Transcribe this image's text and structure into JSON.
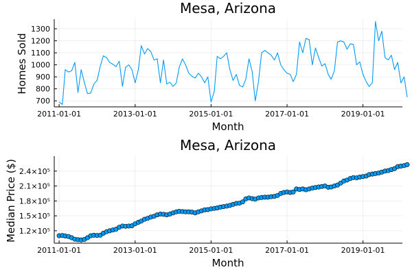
{
  "colors": {
    "series": "#009AF9",
    "marker_edge": "#000000"
  },
  "chart_data": [
    {
      "type": "line",
      "title": "Mesa, Arizona",
      "xlabel": "Month",
      "ylabel": "Homes Sold",
      "x_start": "2011-01-01",
      "x_frequency": "monthly",
      "xlim": [
        "2010-11-15",
        "2020-01-15"
      ],
      "ylim": [
        650,
        1380
      ],
      "grid": true,
      "legend": "none",
      "x_tick_labels": [
        "2011-01-01",
        "2013-01-01",
        "2015-01-01",
        "2017-01-01",
        "2019-01-01"
      ],
      "y_ticks": [
        700,
        800,
        900,
        1000,
        1100,
        1200,
        1300
      ],
      "y_tick_labels": [
        "700",
        "800",
        "900",
        "1000",
        "1100",
        "1200",
        "1300"
      ],
      "values": [
        690,
        670,
        960,
        940,
        950,
        1020,
        770,
        960,
        850,
        760,
        765,
        840,
        870,
        990,
        1075,
        1060,
        1020,
        1005,
        985,
        1030,
        820,
        980,
        1000,
        960,
        850,
        960,
        1160,
        1090,
        1135,
        1110,
        1040,
        1050,
        850,
        1040,
        840,
        855,
        820,
        850,
        980,
        1050,
        1000,
        930,
        905,
        890,
        930,
        900,
        850,
        900,
        690,
        780,
        1070,
        1050,
        1070,
        1100,
        960,
        870,
        920,
        830,
        815,
        880,
        1050,
        940,
        700,
        860,
        1100,
        1120,
        1100,
        1080,
        1040,
        1100,
        1000,
        960,
        930,
        920,
        860,
        920,
        1190,
        1100,
        1220,
        1210,
        1000,
        1140,
        1060,
        990,
        1010,
        920,
        880,
        950,
        1190,
        1200,
        1190,
        1130,
        1175,
        1170,
        1000,
        1025,
        920,
        860,
        820,
        850,
        1360,
        1200,
        1280,
        1060,
        1040,
        1080,
        960,
        1020,
        850,
        900,
        730
      ]
    },
    {
      "type": "scatter",
      "title": "Mesa, Arizona",
      "xlabel": "Month",
      "ylabel": "Median Price ($)",
      "x_start": "2011-01-01",
      "x_frequency": "monthly",
      "xlim": [
        "2010-11-15",
        "2020-01-15"
      ],
      "ylim": [
        95000,
        270000
      ],
      "grid": true,
      "legend": "none",
      "connected_with_line": true,
      "x_tick_labels": [
        "2011-01-01",
        "2013-01-01",
        "2015-01-01",
        "2017-01-01",
        "2019-01-01"
      ],
      "y_ticks": [
        120000,
        150000,
        180000,
        210000,
        240000
      ],
      "y_tick_labels": [
        "1.2×10⁵",
        "1.5×10⁵",
        "1.8×10⁵",
        "2.1×10⁵",
        "2.4×10⁵"
      ],
      "values": [
        110000,
        110500,
        109500,
        108500,
        106000,
        103000,
        102000,
        101500,
        102500,
        106000,
        110000,
        111000,
        110500,
        111000,
        115000,
        118000,
        120000,
        121500,
        123000,
        127000,
        129500,
        129000,
        129500,
        130000,
        134000,
        137000,
        139500,
        143000,
        145000,
        147500,
        149000,
        152000,
        153500,
        153000,
        152000,
        153500,
        156000,
        158000,
        159000,
        158500,
        158000,
        158000,
        157500,
        156000,
        158000,
        160000,
        162000,
        162500,
        164000,
        165000,
        166000,
        167500,
        168500,
        169500,
        171000,
        173000,
        175000,
        175500,
        178000,
        184000,
        186000,
        184500,
        183500,
        186000,
        187000,
        187500,
        187500,
        188500,
        189000,
        191000,
        195000,
        197000,
        198000,
        197000,
        198000,
        204000,
        203000,
        204000,
        202500,
        204000,
        206000,
        207000,
        208000,
        209000,
        210000,
        207500,
        208000,
        210000,
        212000,
        216000,
        220000,
        222000,
        225000,
        227000,
        226500,
        228000,
        229000,
        230000,
        233000,
        234000,
        235000,
        236000,
        238000,
        240000,
        241000,
        243000,
        245000,
        249000,
        250000,
        251000,
        253000
      ]
    }
  ]
}
